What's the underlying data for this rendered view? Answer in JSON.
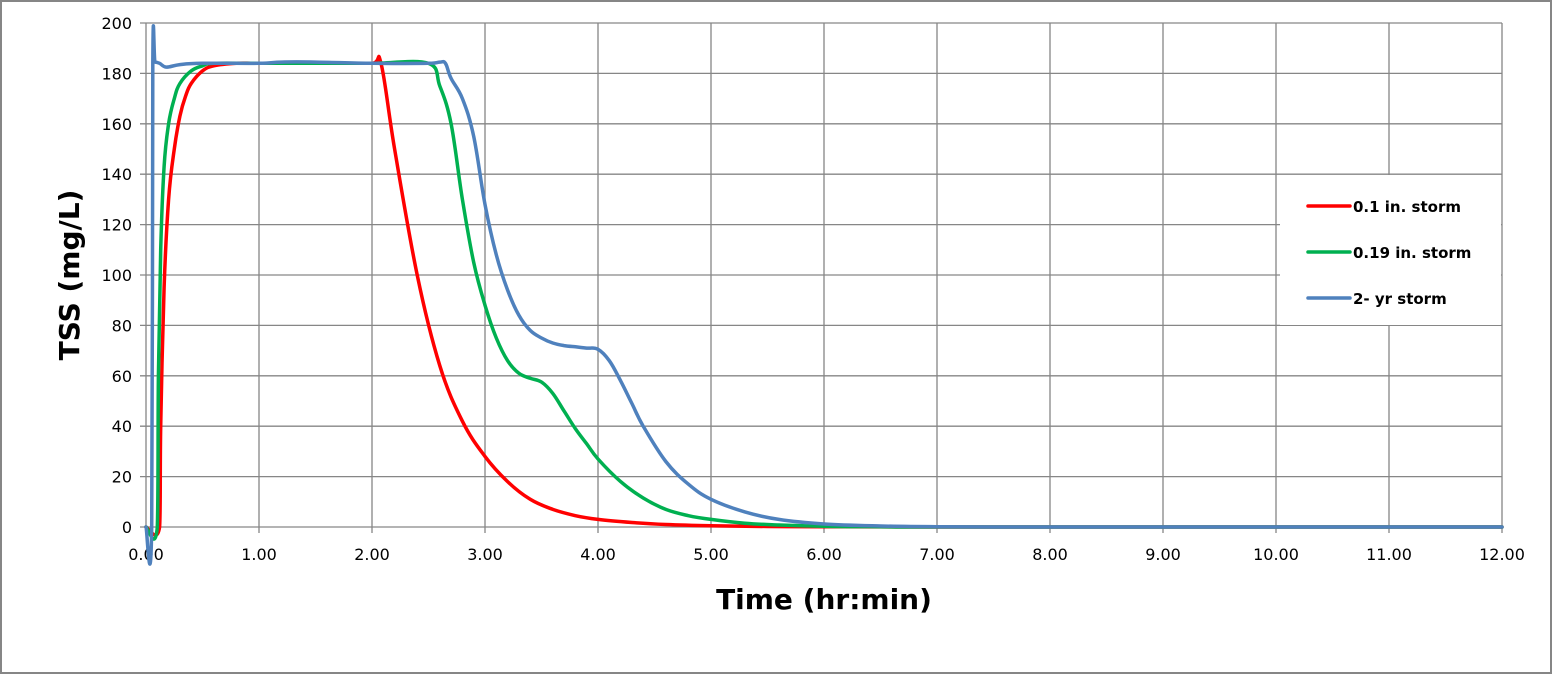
{
  "chart_data": {
    "type": "line",
    "title": "",
    "xlabel": "Time (hr:min)",
    "ylabel": "TSS (mg/L)",
    "xlim": [
      0,
      12
    ],
    "ylim": [
      0,
      200
    ],
    "grid": true,
    "legend_position": "right",
    "x_ticks": [
      "0.00",
      "1.00",
      "2.00",
      "3.00",
      "4.00",
      "5.00",
      "6.00",
      "7.00",
      "8.00",
      "9.00",
      "10.00",
      "11.00",
      "12.00"
    ],
    "y_ticks": [
      "0",
      "20",
      "40",
      "60",
      "80",
      "100",
      "120",
      "140",
      "160",
      "180",
      "200"
    ],
    "series": [
      {
        "name": "0.1 in. storm",
        "color": "#ff0000",
        "x": [
          0,
          0.12,
          0.13,
          0.16,
          0.2,
          0.25,
          0.3,
          0.35,
          0.4,
          0.5,
          0.6,
          0.8,
          1.0,
          1.5,
          2.0,
          2.08,
          2.2,
          2.4,
          2.6,
          2.8,
          3.0,
          3.2,
          3.4,
          3.6,
          3.8,
          4.0,
          4.3,
          4.6,
          5.0,
          5.5,
          6.0,
          7.0,
          12.0
        ],
        "y": [
          0,
          0,
          40,
          95,
          130,
          150,
          163,
          171,
          176,
          181,
          183,
          184,
          184,
          184,
          184,
          184,
          150,
          100,
          64,
          42,
          28,
          18,
          11,
          7,
          4.5,
          3,
          1.8,
          1,
          0.5,
          0.2,
          0.1,
          0,
          0
        ]
      },
      {
        "name": "0.19 in. storm",
        "color": "#00b050",
        "x": [
          0,
          0.1,
          0.11,
          0.13,
          0.16,
          0.2,
          0.25,
          0.3,
          0.4,
          0.5,
          0.6,
          1.0,
          1.5,
          2.0,
          2.5,
          2.6,
          2.7,
          2.8,
          2.9,
          3.0,
          3.1,
          3.2,
          3.3,
          3.4,
          3.5,
          3.6,
          3.7,
          3.8,
          3.9,
          4.0,
          4.2,
          4.4,
          4.6,
          4.8,
          5.0,
          5.3,
          5.6,
          6.0,
          6.5,
          7.0,
          12.0
        ],
        "y": [
          0,
          0,
          60,
          110,
          143,
          160,
          170,
          176,
          181,
          183,
          184,
          184,
          184,
          184,
          184,
          175,
          160,
          130,
          105,
          88,
          75,
          66,
          61,
          59,
          57.5,
          53,
          46,
          39,
          33,
          27,
          18,
          11.5,
          7,
          4.5,
          3,
          1.5,
          0.8,
          0.3,
          0.1,
          0,
          0
        ]
      },
      {
        "name": "2- yr storm",
        "color": "#4f81bd",
        "x": [
          0,
          0.05,
          0.06,
          0.08,
          0.12,
          0.18,
          0.3,
          0.5,
          1.0,
          1.2,
          1.5,
          2.0,
          2.5,
          2.6,
          2.65,
          2.7,
          2.8,
          2.9,
          3.0,
          3.1,
          3.2,
          3.3,
          3.4,
          3.5,
          3.6,
          3.7,
          3.8,
          3.9,
          4.0,
          4.1,
          4.2,
          4.3,
          4.4,
          4.6,
          4.8,
          5.0,
          5.3,
          5.6,
          6.0,
          6.5,
          7.0,
          7.5,
          8.0,
          12.0
        ],
        "y": [
          0,
          0,
          184,
          184.5,
          184,
          182.5,
          183.5,
          184,
          184,
          184.5,
          184.5,
          184,
          184,
          184.5,
          184,
          178,
          170,
          155,
          128,
          108,
          94,
          84,
          78,
          75,
          73,
          72,
          71.5,
          71,
          70.5,
          66,
          58,
          49,
          40,
          26,
          17,
          11,
          6,
          3,
          1.2,
          0.4,
          0.1,
          0,
          0,
          0
        ]
      }
    ]
  }
}
